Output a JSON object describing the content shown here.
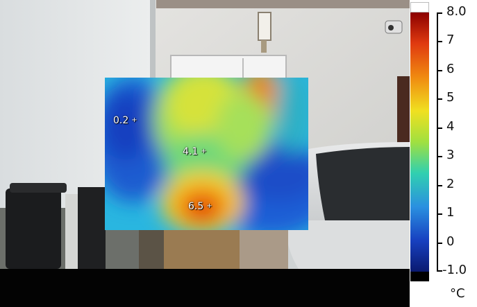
{
  "image": {
    "description_icon": "house-entrance-photo-icon"
  },
  "overlay": {
    "spots": [
      {
        "value": "0.2"
      },
      {
        "value": "4.1"
      },
      {
        "value": "6.5"
      }
    ]
  },
  "scale": {
    "max_label": "8.0",
    "min_label": "-1.0",
    "ticks": [
      "7",
      "6",
      "5",
      "4",
      "3",
      "2",
      "1",
      "0"
    ],
    "unit": "°C",
    "colors": [
      "#8b0000",
      "#e03a10",
      "#f08a10",
      "#f0e020",
      "#a0e040",
      "#30d0b0",
      "#2a90e0",
      "#1740c0",
      "#0a1a70"
    ]
  }
}
